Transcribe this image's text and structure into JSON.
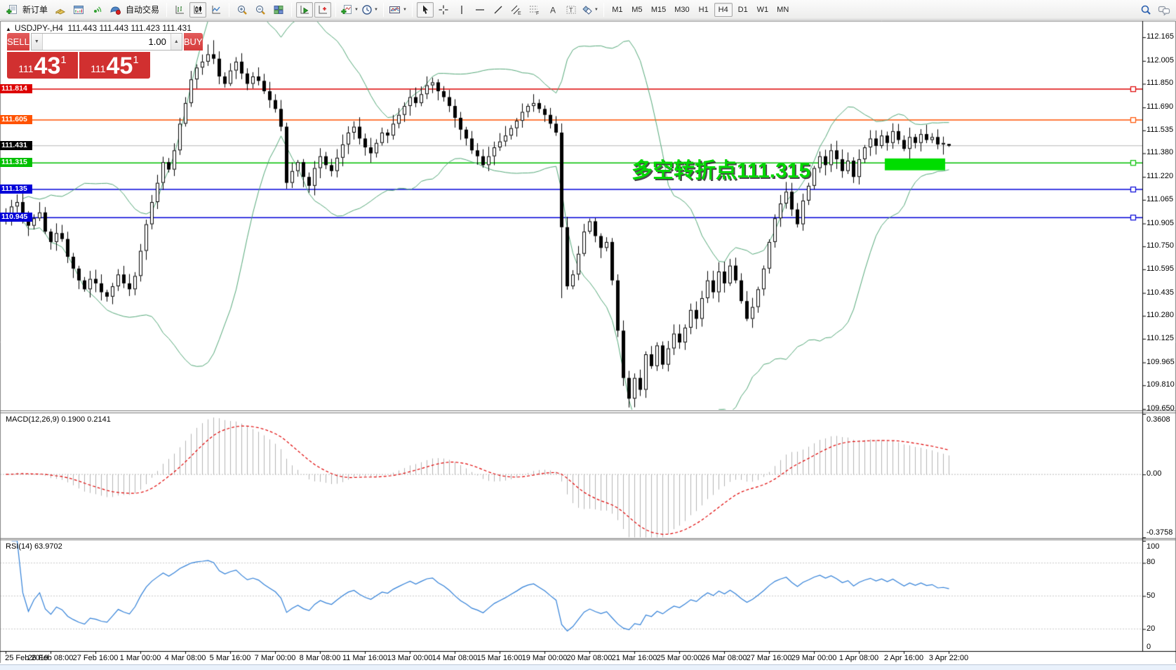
{
  "icons": {
    "collapse-arrow": "▲",
    "dropdown-caret": "▼",
    "spinner-up": "▲",
    "spinner-down": "▼"
  },
  "toolbar": {
    "new_order_label": "新订单",
    "autotrade_label": "自动交易",
    "timeframes": [
      "M1",
      "M5",
      "M15",
      "M30",
      "H1",
      "H4",
      "D1",
      "W1",
      "MN"
    ],
    "active_timeframe": "H4"
  },
  "chart": {
    "title_symbol": "USDJPY-,H4",
    "title_ohlc": "111.443 111.443 111.423 111.431"
  },
  "trade_panel": {
    "sell_label": "SELL",
    "buy_label": "BUY",
    "volume": "1.00",
    "bid": {
      "prefix": "111",
      "big": "43",
      "sup": "1"
    },
    "ask": {
      "prefix": "111",
      "big": "45",
      "sup": "1"
    }
  },
  "annotation": {
    "text": "多空转折点111.315",
    "color": "#00d800"
  },
  "chart_data": {
    "type": "candlestick",
    "symbol": "USDJPY-",
    "period": "H4",
    "bars_total": 169,
    "current": {
      "open": 111.443,
      "high": 111.443,
      "low": 111.423,
      "close": 111.431,
      "bid": 111.431,
      "ask": 111.451
    },
    "price_axis": {
      "ylim": [
        109.645,
        112.27
      ],
      "ticks": [
        112.165,
        112.005,
        111.85,
        111.69,
        111.535,
        111.38,
        111.22,
        111.065,
        110.905,
        110.75,
        110.595,
        110.435,
        110.28,
        110.125,
        109.965,
        109.81,
        109.65
      ]
    },
    "time_labels": [
      "25 Feb 2019",
      "26 Feb 08:00",
      "27 Feb 16:00",
      "1 Mar 00:00",
      "4 Mar 08:00",
      "5 Mar 16:00",
      "7 Mar 00:00",
      "8 Mar 08:00",
      "11 Mar 16:00",
      "13 Mar 00:00",
      "14 Mar 08:00",
      "15 Mar 16:00",
      "19 Mar 00:00",
      "20 Mar 08:00",
      "21 Mar 16:00",
      "25 Mar 00:00",
      "26 Mar 08:00",
      "27 Mar 16:00",
      "29 Mar 00:00",
      "1 Apr 08:00",
      "2 Apr 16:00",
      "3 Apr 22:00"
    ],
    "bars_per_label": 8,
    "hlines": [
      {
        "price": 111.814,
        "color": "#dd0000",
        "label": "111.814"
      },
      {
        "price": 111.605,
        "color": "#ff5200",
        "label": "111.605"
      },
      {
        "price": 111.315,
        "color": "#00c000",
        "label": "111.315"
      },
      {
        "price": 111.135,
        "color": "#0000d8",
        "label": "111.135"
      },
      {
        "price": 110.945,
        "color": "#0000d8",
        "label": "110.945"
      }
    ],
    "current_price_line": {
      "price": 111.431,
      "color": "#b8b8b8",
      "label": "111.431",
      "label_bg": "#000000"
    },
    "highlight": {
      "bar_start": 157,
      "bar_end": 167,
      "price_top": 111.345,
      "price_bottom": 111.265,
      "color": "#00dd00"
    },
    "candles": {
      "first_open": 110.93,
      "closes": [
        110.96,
        111.02,
        111.05,
        110.97,
        110.89,
        110.94,
        110.98,
        110.85,
        110.78,
        110.84,
        110.8,
        110.68,
        110.6,
        110.52,
        110.46,
        110.53,
        110.5,
        110.44,
        110.41,
        110.48,
        110.56,
        110.5,
        110.46,
        110.55,
        110.72,
        110.9,
        111.05,
        111.18,
        111.32,
        111.27,
        111.4,
        111.58,
        111.72,
        111.88,
        111.96,
        112.0,
        112.05,
        112.02,
        111.9,
        111.85,
        111.94,
        112.0,
        111.92,
        111.85,
        111.9,
        111.87,
        111.8,
        111.74,
        111.68,
        111.56,
        111.18,
        111.26,
        111.32,
        111.22,
        111.16,
        111.28,
        111.36,
        111.3,
        111.26,
        111.35,
        111.44,
        111.52,
        111.56,
        111.48,
        111.42,
        111.38,
        111.45,
        111.52,
        111.5,
        111.58,
        111.64,
        111.7,
        111.76,
        111.72,
        111.78,
        111.84,
        111.86,
        111.8,
        111.76,
        111.7,
        111.62,
        111.54,
        111.48,
        111.4,
        111.36,
        111.3,
        111.36,
        111.42,
        111.46,
        111.5,
        111.55,
        111.6,
        111.66,
        111.7,
        111.72,
        111.68,
        111.64,
        111.58,
        111.52,
        110.88,
        110.48,
        110.56,
        110.7,
        110.85,
        110.92,
        110.82,
        110.74,
        110.78,
        110.52,
        110.18,
        109.86,
        109.72,
        109.86,
        109.78,
        110.02,
        109.94,
        110.08,
        109.95,
        110.06,
        110.16,
        110.1,
        110.2,
        110.32,
        110.26,
        110.4,
        110.52,
        110.44,
        110.58,
        110.5,
        110.62,
        110.52,
        110.38,
        110.26,
        110.34,
        110.46,
        110.6,
        110.78,
        110.94,
        111.04,
        111.12,
        111.0,
        110.9,
        111.06,
        111.16,
        111.28,
        111.36,
        111.3,
        111.4,
        111.34,
        111.26,
        111.33,
        111.22,
        111.34,
        111.42,
        111.48,
        111.43,
        111.5,
        111.45,
        111.53,
        111.47,
        111.41,
        111.49,
        111.45,
        111.51,
        111.47,
        111.49,
        111.44,
        111.45,
        111.431
      ],
      "overrides": {
        "37": {
          "h": 112.145
        },
        "99": {
          "l": 110.4
        },
        "111": {
          "l": 109.66
        },
        "168": {
          "o": 111.443,
          "h": 111.443,
          "l": 111.423
        }
      }
    },
    "indicators": {
      "bollinger": {
        "period": 20,
        "deviation": 2,
        "color": "#53a878"
      },
      "macd": {
        "label": "MACD(12,26,9) 0.1900 0.2141",
        "fast": 12,
        "slow": 26,
        "signal": 9,
        "current_values": [
          0.19,
          0.2141
        ],
        "range": [
          -0.3758,
          0.3608
        ],
        "axis_labels": [
          "0.3608",
          "0.00",
          "-0.3758"
        ],
        "hist_color": "#b4b4b4",
        "signal_color": "#e00000"
      },
      "rsi": {
        "label": "RSI(14) 63.9702",
        "period": 14,
        "value": 63.9702,
        "range": [
          0,
          100
        ],
        "levels": [
          80,
          50,
          20
        ],
        "axis_labels": [
          "100",
          "80",
          "50",
          "20",
          "0"
        ],
        "color": "#2f7fd8"
      }
    }
  }
}
